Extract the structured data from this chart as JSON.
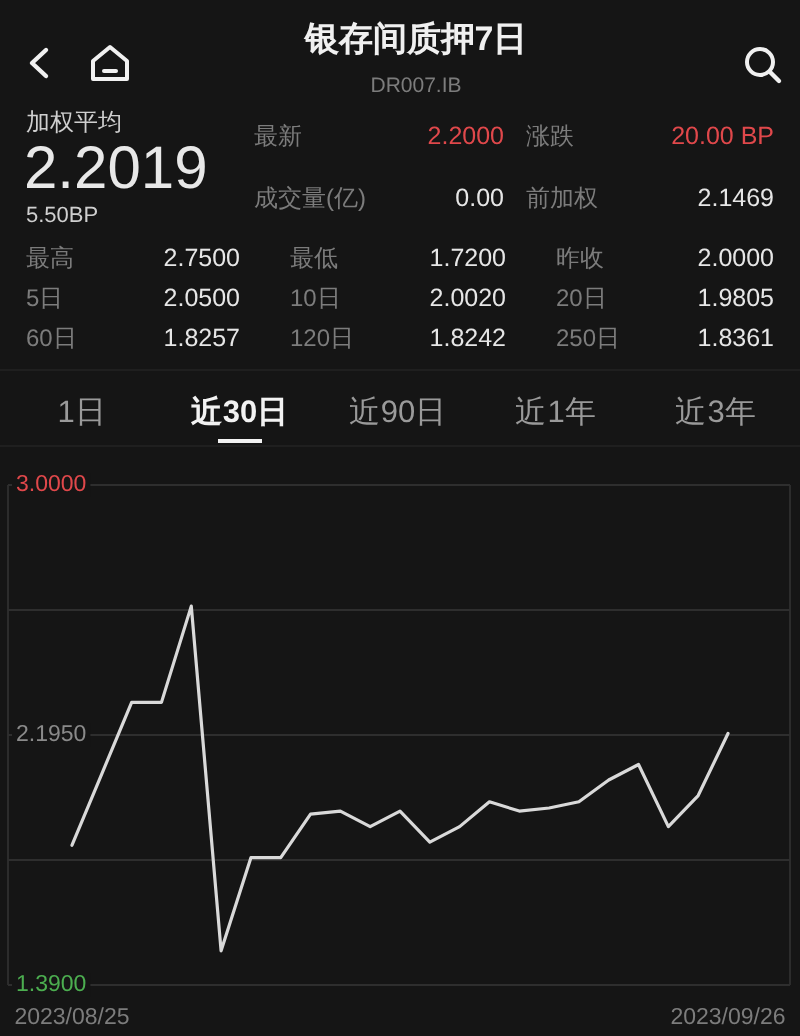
{
  "chart_data": [
    {
      "type": "other",
      "title": "银存间质押7日",
      "subtitle": "DR007.IB",
      "annotations": [
        "加权平均",
        "2.2019",
        "5.50BP",
        "最新",
        "2.2000",
        "涨跌",
        "20.00 BP",
        "成交量(亿)",
        "0.00",
        "前加权",
        "2.1469",
        "最高",
        "2.7500",
        "最低",
        "1.7200",
        "昨收",
        "2.0000",
        "5日",
        "2.0500",
        "10日",
        "2.0020",
        "20日",
        "1.9805",
        "60日",
        "1.8257",
        "120日",
        "1.8242",
        "250日",
        "1.8361",
        "1日",
        "近30日",
        "近90日",
        "近1年",
        "近3年"
      ]
    },
    {
      "type": "line",
      "categories": [
        "2023/08/25",
        null,
        null,
        null,
        null,
        null,
        null,
        null,
        null,
        null,
        null,
        null,
        null,
        null,
        null,
        null,
        null,
        null,
        null,
        null,
        null,
        null,
        "2023/09/26"
      ],
      "values": [
        1.84,
        2.07,
        2.3,
        2.3,
        2.61,
        1.5,
        1.8,
        1.8,
        1.94,
        1.95,
        1.9,
        1.95,
        1.85,
        1.9,
        1.98,
        1.95,
        1.96,
        1.98,
        2.05,
        2.1,
        1.9,
        2.0,
        2.2
      ],
      "color": "#d9d9d9",
      "ylim": [
        1.39,
        3.0
      ],
      "yticks": [
        {
          "value": 1.39,
          "label": "1.3900"
        },
        {
          "value": 1.7925,
          "label": null
        },
        {
          "value": 2.195,
          "label": "2.1950"
        },
        {
          "value": 2.5975,
          "label": null
        },
        {
          "value": 3.0,
          "label": "3.0000"
        }
      ],
      "grid": "y"
    }
  ]
}
